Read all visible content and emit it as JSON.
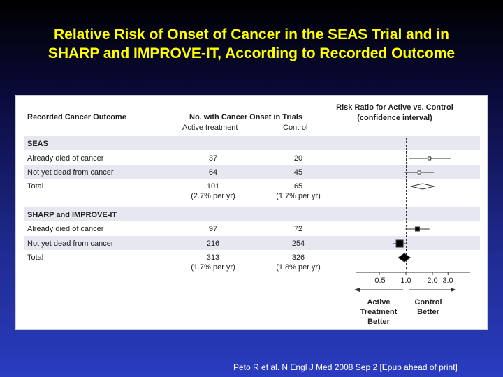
{
  "slide": {
    "title_line1": "Relative Risk of Onset of Cancer in the SEAS Trial and in",
    "title_line2": "SHARP and IMPROVE-IT, According to Recorded Outcome",
    "citation": "Peto R et al. N Engl J Med 2008 Sep 2 [Epub ahead of print]"
  },
  "table": {
    "col_outcome": "Recorded Cancer Outcome",
    "col_trials": "No. with Cancer Onset in Trials",
    "col_active": "Active treatment",
    "col_control": "Control",
    "col_rr_line1": "Risk Ratio for Active vs. Control",
    "col_rr_line2": "(confidence interval)",
    "groups": [
      {
        "name": "SEAS",
        "rows": [
          {
            "label": "Already died of cancer",
            "active": "37",
            "control": "20"
          },
          {
            "label": "Not yet dead from cancer",
            "active": "64",
            "control": "45"
          },
          {
            "label": "Total",
            "active": "101",
            "control": "65",
            "active_rate": "(2.7% per yr)",
            "control_rate": "(1.7% per yr)"
          }
        ]
      },
      {
        "name": "SHARP and IMPROVE-IT",
        "rows": [
          {
            "label": "Already died of cancer",
            "active": "97",
            "control": "72"
          },
          {
            "label": "Not yet dead from cancer",
            "active": "216",
            "control": "254"
          },
          {
            "label": "Total",
            "active": "313",
            "control": "326",
            "active_rate": "(1.7% per yr)",
            "control_rate": "(1.8% per yr)"
          }
        ]
      }
    ]
  },
  "forest": {
    "scale": "log",
    "ticks": [
      "0.5",
      "1.0",
      "2.0",
      "3.0"
    ],
    "left_label_lines": [
      "Active",
      "Treatment",
      "Better"
    ],
    "right_label_lines": [
      "Control",
      "Better"
    ],
    "estimates": [
      {
        "row": "SEAS - Already died of cancer",
        "rr": 1.85,
        "lo": 1.08,
        "hi": 3.2,
        "marker": "open-square"
      },
      {
        "row": "SEAS - Not yet dead from cancer",
        "rr": 1.42,
        "lo": 0.97,
        "hi": 2.08,
        "marker": "open-square"
      },
      {
        "row": "SEAS - Total",
        "rr": 1.55,
        "lo": 1.13,
        "hi": 2.1,
        "marker": "open-diamond"
      },
      {
        "row": "SHARP and IMPROVE-IT - Already died of cancer",
        "rr": 1.35,
        "lo": 0.99,
        "hi": 1.85,
        "marker": "filled-square"
      },
      {
        "row": "SHARP and IMPROVE-IT - Not yet dead from cancer",
        "rr": 0.85,
        "lo": 0.71,
        "hi": 1.02,
        "marker": "filled-square"
      },
      {
        "row": "SHARP and IMPROVE-IT - Total",
        "rr": 0.96,
        "lo": 0.82,
        "hi": 1.12,
        "marker": "filled-diamond"
      }
    ]
  }
}
